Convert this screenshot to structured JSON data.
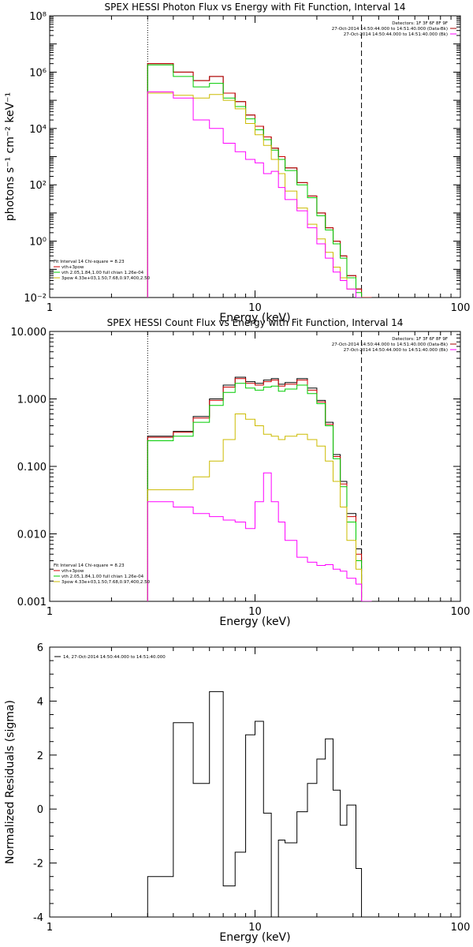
{
  "chart_data": [
    {
      "type": "line",
      "title": "SPEX HESSI Photon Flux vs Energy with Fit Function, Interval 14",
      "xlabel": "Energy (keV)",
      "ylabel": "photons s⁻¹ cm⁻² keV⁻¹",
      "xscale": "log",
      "yscale": "log",
      "xlim": [
        1,
        100
      ],
      "ylim": [
        0.01,
        100000000
      ],
      "x_ticks": [
        "1",
        "10",
        "100"
      ],
      "y_ticks": [
        "10⁻²",
        "10⁰",
        "10²",
        "10⁴",
        "10⁶",
        "10⁸"
      ],
      "vlines": [
        {
          "x": 3,
          "style": "dotted"
        },
        {
          "x": 33,
          "style": "dashed"
        }
      ],
      "legend_right": [
        {
          "text": "Detectors: 1F 3F 6F 8F 9F",
          "color": "#000000"
        },
        {
          "text": "27-Oct-2014 14:50:44.000 to 14:51:40.000 (Data-Bk)",
          "color": "#000000",
          "swatch": "#aa0000"
        },
        {
          "text": "27-Oct-2014 14:50:44.000 to 14:51:40.000 (Bk)",
          "color": "#000000",
          "swatch": "#ff00ff"
        }
      ],
      "legend_left": [
        {
          "text": "Fit Interval 14    Chi-square = 8.23",
          "color": "#000000"
        },
        {
          "text": "vth+3pow",
          "color": "#000000",
          "swatch": "#cc0000"
        },
        {
          "text": "vth 2.05,1.84,1.00  full chian 1.26e-04",
          "color": "#000000",
          "swatch": "#00cc00"
        },
        {
          "text": "3pow 4.33e+03,1.50,7.68,0.97,400,2.50",
          "color": "#000000",
          "swatch": "#ccbb00"
        }
      ],
      "edges": [
        3,
        4,
        5,
        6,
        7,
        8,
        9,
        10,
        11,
        12,
        13,
        14,
        16,
        18,
        20,
        22,
        24,
        26,
        28,
        31,
        33,
        37
      ],
      "series": [
        {
          "color": "#000000",
          "values": [
            2000000,
            1000000,
            500000,
            700000,
            180000,
            90000,
            30000,
            12000,
            5000,
            2000,
            1000,
            400,
            120,
            40,
            10,
            3,
            1,
            0.3,
            0.06,
            0.02,
            0.01
          ]
        },
        {
          "color": "#cc0000",
          "values": [
            2000000,
            1000000,
            500000,
            700000,
            180000,
            90000,
            30000,
            12000,
            5000,
            2000,
            1000,
            400,
            120,
            40,
            10,
            3,
            1,
            0.3,
            0.06,
            0.02,
            0.01
          ]
        },
        {
          "color": "#00cc00",
          "values": [
            1800000,
            700000,
            300000,
            400000,
            120000,
            60000,
            22000,
            9000,
            4000,
            1700,
            800,
            320,
            100,
            35,
            8,
            2.5,
            0.8,
            0.25,
            0.05,
            0.015,
            0.005
          ]
        },
        {
          "color": "#ccbb00",
          "values": [
            180000,
            150000,
            120000,
            160000,
            100000,
            50000,
            15000,
            6000,
            2500,
            800,
            250,
            60,
            15,
            4,
            1.2,
            0.4,
            0.12,
            0.05,
            0.02,
            0.01,
            0.005
          ]
        },
        {
          "color": "#ff00ff",
          "values": [
            200000,
            120000,
            20000,
            10000,
            3000,
            1500,
            800,
            600,
            250,
            300,
            80,
            30,
            12,
            3,
            0.8,
            0.25,
            0.08,
            0.04,
            0.02,
            0.01,
            0.004
          ]
        }
      ]
    },
    {
      "type": "line",
      "title": "SPEX HESSI Count Flux vs Energy with Fit Function, Interval 14",
      "xlabel": "Energy (keV)",
      "ylabel": "",
      "xscale": "log",
      "yscale": "log",
      "xlim": [
        1,
        100
      ],
      "ylim": [
        0.001,
        10
      ],
      "x_ticks": [
        "1",
        "10",
        "100"
      ],
      "y_ticks": [
        "0.001",
        "0.010",
        "0.100",
        "1.000",
        "10.000"
      ],
      "vlines": [
        {
          "x": 3,
          "style": "dotted"
        },
        {
          "x": 33,
          "style": "dashed"
        }
      ],
      "legend_right": [
        {
          "text": "Detectors: 1F 3F 6F 8F 9F",
          "color": "#000000"
        },
        {
          "text": "27-Oct-2014 14:50:44.000 to 14:51:40.000 (Data-Bk)",
          "color": "#000000",
          "swatch": "#aa0000"
        },
        {
          "text": "27-Oct-2014 14:50:44.000 to 14:51:40.000 (Bk)",
          "color": "#000000",
          "swatch": "#ff00ff"
        }
      ],
      "legend_left": [
        {
          "text": "Fit Interval 14    Chi-square = 8.23",
          "color": "#000000"
        },
        {
          "text": "vth+3pow",
          "color": "#000000",
          "swatch": "#cc0000"
        },
        {
          "text": "vth 2.05,1.84,1.00  full chian 1.26e-04",
          "color": "#000000",
          "swatch": "#00cc00"
        },
        {
          "text": "3pow 4.33e+03,1.50,7.68,0.97,400,2.50",
          "color": "#000000",
          "swatch": "#ccbb00"
        }
      ],
      "edges": [
        3,
        4,
        5,
        6,
        7,
        8,
        9,
        10,
        11,
        12,
        13,
        14,
        16,
        18,
        20,
        22,
        24,
        26,
        28,
        31,
        33,
        37
      ],
      "series": [
        {
          "color": "#000000",
          "values": [
            0.28,
            0.33,
            0.55,
            1.0,
            1.6,
            2.1,
            1.8,
            1.7,
            1.9,
            2.0,
            1.65,
            1.75,
            2.0,
            1.45,
            0.95,
            0.45,
            0.15,
            0.06,
            0.02,
            0.006,
            0.001
          ]
        },
        {
          "color": "#cc0000",
          "values": [
            0.27,
            0.32,
            0.52,
            0.95,
            1.5,
            2.0,
            1.7,
            1.6,
            1.8,
            1.9,
            1.55,
            1.65,
            1.9,
            1.35,
            0.9,
            0.42,
            0.14,
            0.055,
            0.018,
            0.005,
            0.001
          ]
        },
        {
          "color": "#00cc00",
          "values": [
            0.24,
            0.28,
            0.45,
            0.8,
            1.25,
            1.7,
            1.45,
            1.35,
            1.5,
            1.55,
            1.3,
            1.4,
            1.6,
            1.2,
            0.85,
            0.4,
            0.13,
            0.05,
            0.015,
            0.004,
            0.001
          ]
        },
        {
          "color": "#ccbb00",
          "values": [
            0.045,
            0.045,
            0.07,
            0.12,
            0.25,
            0.6,
            0.5,
            0.4,
            0.3,
            0.28,
            0.25,
            0.28,
            0.3,
            0.25,
            0.2,
            0.12,
            0.06,
            0.025,
            0.008,
            0.003,
            0.001
          ]
        },
        {
          "color": "#ff00ff",
          "values": [
            0.03,
            0.025,
            0.02,
            0.018,
            0.016,
            0.015,
            0.012,
            0.03,
            0.08,
            0.03,
            0.015,
            0.008,
            0.0045,
            0.0038,
            0.0034,
            0.0035,
            0.003,
            0.0028,
            0.0022,
            0.0018,
            0.001
          ]
        }
      ]
    },
    {
      "type": "line",
      "title": "",
      "xlabel": "Energy (keV)",
      "ylabel": "Normalized Residuals (sigma)",
      "xscale": "log",
      "yscale": "linear",
      "xlim": [
        1,
        100
      ],
      "ylim": [
        -4,
        6
      ],
      "x_ticks": [
        "1",
        "10",
        "100"
      ],
      "y_ticks": [
        "-4",
        "-2",
        "0",
        "2",
        "4",
        "6"
      ],
      "legend_text": "14, 27-Oct-2014 14:50:44.000 to 14:51:40.000",
      "edges": [
        3,
        4,
        5,
        6,
        7,
        8,
        9,
        10,
        11,
        12,
        13,
        14,
        16,
        18,
        20,
        22,
        24,
        26,
        28,
        31,
        33
      ],
      "series": [
        {
          "color": "#000000",
          "values": [
            -2.5,
            3.2,
            0.95,
            4.35,
            -2.85,
            -1.6,
            2.75,
            3.25,
            -0.15,
            -4.25,
            -1.15,
            -1.25,
            -0.1,
            0.95,
            1.85,
            2.6,
            0.7,
            -0.6,
            0.15,
            -2.2
          ]
        }
      ]
    }
  ]
}
